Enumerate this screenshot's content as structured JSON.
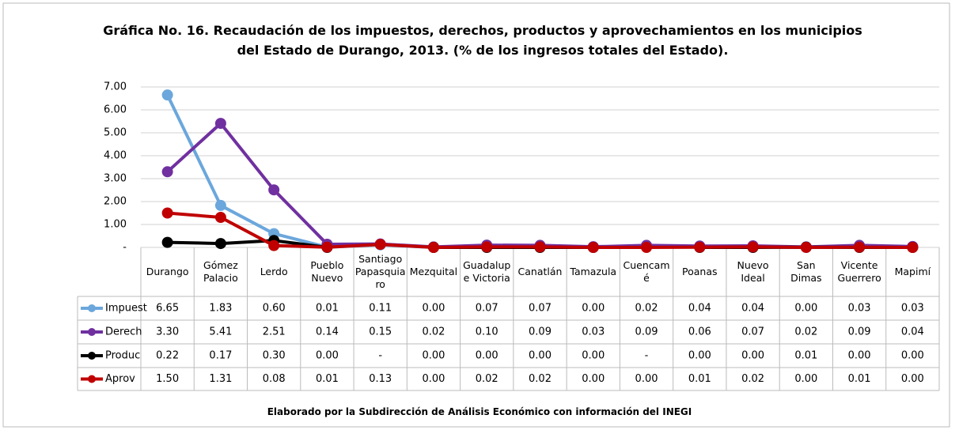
{
  "chart_data": {
    "type": "line",
    "title": "Gráfica No. 16. Recaudación de los impuestos, derechos, productos y aprovechamientos en los municipios del Estado de Durango, 2013. (% de los ingresos totales del Estado).",
    "categories": [
      "Durango",
      "Gómez Palacio",
      "Lerdo",
      "Pueblo Nuevo",
      "Santiago Papasquiaro",
      "Mezquital",
      "Guadalupe Victoria",
      "Canatlán",
      "Tamazula",
      "Cuencamé",
      "Poanas",
      "Nuevo Ideal",
      "San Dimas",
      "Vicente Guerrero",
      "Mapimí"
    ],
    "series": [
      {
        "name": "Impuest",
        "color": "#6ba7dc",
        "values": [
          6.65,
          1.83,
          0.6,
          0.01,
          0.11,
          0.0,
          0.07,
          0.07,
          0.0,
          0.02,
          0.04,
          0.04,
          0.0,
          0.03,
          0.03
        ],
        "value_labels": [
          "6.65",
          "1.83",
          "0.60",
          "0.01",
          "0.11",
          "0.00",
          "0.07",
          "0.07",
          "0.00",
          "0.02",
          "0.04",
          "0.04",
          "0.00",
          "0.03",
          "0.03"
        ]
      },
      {
        "name": "Derech",
        "color": "#7030a0",
        "values": [
          3.3,
          5.41,
          2.51,
          0.14,
          0.15,
          0.02,
          0.1,
          0.09,
          0.03,
          0.09,
          0.06,
          0.07,
          0.02,
          0.09,
          0.04
        ],
        "value_labels": [
          "3.30",
          "5.41",
          "2.51",
          "0.14",
          "0.15",
          "0.02",
          "0.10",
          "0.09",
          "0.03",
          "0.09",
          "0.06",
          "0.07",
          "0.02",
          "0.09",
          "0.04"
        ]
      },
      {
        "name": "Produc",
        "color": "#000000",
        "values": [
          0.22,
          0.17,
          0.3,
          0.0,
          null,
          0.0,
          0.0,
          0.0,
          0.0,
          null,
          0.0,
          0.0,
          0.01,
          0.0,
          0.0
        ],
        "value_labels": [
          "0.22",
          "0.17",
          "0.30",
          "0.00",
          "-",
          "0.00",
          "0.00",
          "0.00",
          "0.00",
          "-",
          "0.00",
          "0.00",
          "0.01",
          "0.00",
          "0.00"
        ]
      },
      {
        "name": "Aprov",
        "color": "#c00000",
        "values": [
          1.5,
          1.31,
          0.08,
          0.01,
          0.13,
          0.0,
          0.02,
          0.02,
          0.0,
          0.0,
          0.01,
          0.02,
          0.0,
          0.01,
          0.0
        ],
        "value_labels": [
          "1.50",
          "1.31",
          "0.08",
          "0.01",
          "0.13",
          "0.00",
          "0.02",
          "0.02",
          "0.00",
          "0.00",
          "0.01",
          "0.02",
          "0.00",
          "0.01",
          "0.00"
        ]
      }
    ],
    "ylim": [
      0,
      7
    ],
    "yticks": [
      {
        "value": 0,
        "label": "-"
      },
      {
        "value": 1,
        "label": "1.00"
      },
      {
        "value": 2,
        "label": "2.00"
      },
      {
        "value": 3,
        "label": "3.00"
      },
      {
        "value": 4,
        "label": "4.00"
      },
      {
        "value": 5,
        "label": "5.00"
      },
      {
        "value": 6,
        "label": "6.00"
      },
      {
        "value": 7,
        "label": "7.00"
      }
    ],
    "grid": true,
    "source": "Elaborado por la Subdirección de Análisis Económico con información del INEGI"
  }
}
